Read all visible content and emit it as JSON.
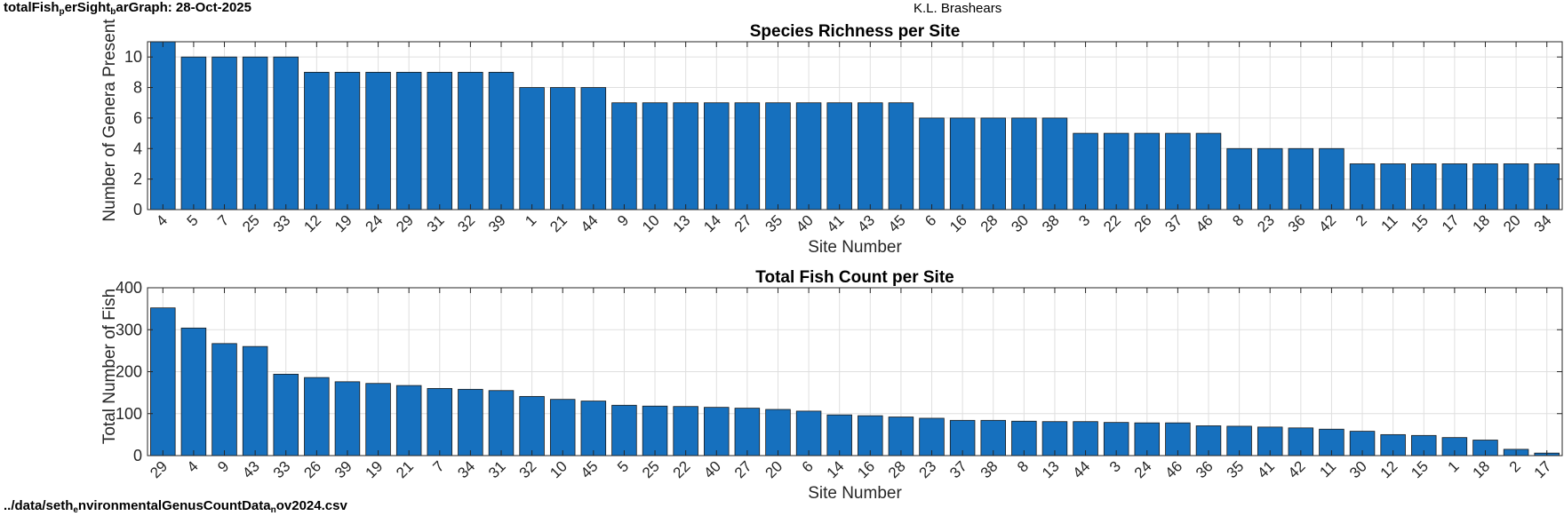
{
  "header": {
    "script_name_parts": [
      "totalFish",
      "p",
      "erSight",
      "b",
      "arGraph:  28-Oct-2025"
    ],
    "author": "K.L. Brashears"
  },
  "footer": {
    "file_path_parts": [
      "../data/seth",
      "e",
      "nvironmentalGenusCountData",
      "n",
      "ov2024.csv"
    ]
  },
  "colors": {
    "bar": "#1670BE",
    "bar_edge": "#1a1a1a",
    "grid": "#dfdfdf",
    "axis": "#262626"
  },
  "chart_data": [
    {
      "type": "bar",
      "title": "Species Richness per Site",
      "xlabel": "Site Number",
      "ylabel": "Number of Genera Present",
      "ylim": [
        0,
        11
      ],
      "yticks": [
        0,
        2,
        4,
        6,
        8,
        10
      ],
      "grid": true,
      "categories": [
        "4",
        "5",
        "7",
        "25",
        "33",
        "12",
        "19",
        "24",
        "29",
        "31",
        "32",
        "39",
        "1",
        "21",
        "44",
        "9",
        "10",
        "13",
        "14",
        "27",
        "35",
        "40",
        "41",
        "43",
        "45",
        "6",
        "16",
        "28",
        "30",
        "38",
        "3",
        "22",
        "26",
        "37",
        "46",
        "8",
        "23",
        "36",
        "42",
        "2",
        "11",
        "15",
        "17",
        "18",
        "20",
        "34"
      ],
      "values": [
        11,
        10,
        10,
        10,
        10,
        9,
        9,
        9,
        9,
        9,
        9,
        9,
        8,
        8,
        8,
        7,
        7,
        7,
        7,
        7,
        7,
        7,
        7,
        7,
        7,
        6,
        6,
        6,
        6,
        6,
        5,
        5,
        5,
        5,
        5,
        4,
        4,
        4,
        4,
        3,
        3,
        3,
        3,
        3,
        3,
        3
      ]
    },
    {
      "type": "bar",
      "title": "Total Fish Count per Site",
      "xlabel": "Site Number",
      "ylabel": "Total Number of Fish",
      "ylim": [
        0,
        400
      ],
      "yticks": [
        0,
        100,
        200,
        300,
        400
      ],
      "grid": true,
      "categories": [
        "29",
        "4",
        "9",
        "43",
        "33",
        "26",
        "39",
        "19",
        "21",
        "7",
        "34",
        "31",
        "32",
        "10",
        "45",
        "5",
        "25",
        "22",
        "40",
        "27",
        "20",
        "6",
        "14",
        "16",
        "28",
        "23",
        "37",
        "38",
        "8",
        "13",
        "44",
        "3",
        "24",
        "46",
        "36",
        "35",
        "41",
        "42",
        "11",
        "30",
        "12",
        "15",
        "1",
        "18",
        "2",
        "17"
      ],
      "values": [
        352,
        304,
        267,
        260,
        194,
        186,
        176,
        172,
        167,
        160,
        158,
        155,
        141,
        134,
        130,
        120,
        118,
        117,
        115,
        113,
        110,
        106,
        97,
        95,
        92,
        89,
        84,
        84,
        82,
        81,
        81,
        79,
        78,
        78,
        71,
        70,
        68,
        66,
        63,
        58,
        50,
        48,
        43,
        37,
        15,
        6
      ]
    }
  ]
}
